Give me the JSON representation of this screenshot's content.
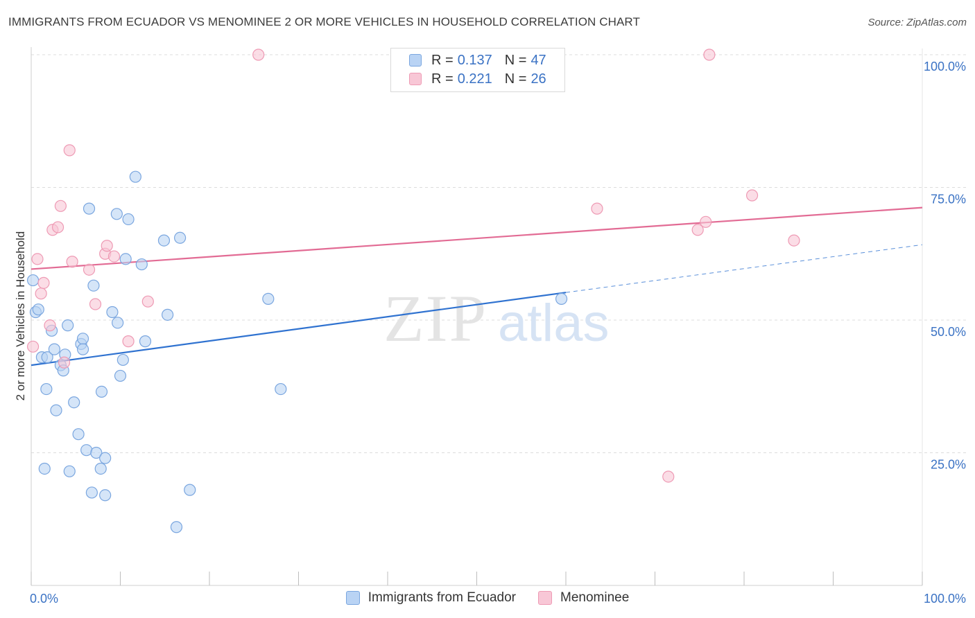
{
  "header": {
    "title": "IMMIGRANTS FROM ECUADOR VS MENOMINEE 2 OR MORE VEHICLES IN HOUSEHOLD CORRELATION CHART",
    "source": "Source: ZipAtlas.com"
  },
  "legend": {
    "rows": [
      {
        "r_label": "R =",
        "r_value": "0.137",
        "n_label": "N =",
        "n_value": "47"
      },
      {
        "r_label": "R =",
        "r_value": "0.221",
        "n_label": "N =",
        "n_value": "26"
      }
    ]
  },
  "watermark": {
    "zip": "ZIP",
    "atlas": "atlas"
  },
  "colors": {
    "blue_fill": "#b9d3f4",
    "blue_stroke": "#7aa6df",
    "blue_line": "#2f72d0",
    "pink_fill": "#f8c7d6",
    "pink_stroke": "#ee9ab4",
    "pink_line": "#e26b94",
    "axis_text": "#3a72c4",
    "grid": "#dcdcdc"
  },
  "chart_data": {
    "type": "scatter",
    "title": "IMMIGRANTS FROM ECUADOR VS MENOMINEE 2 OR MORE VEHICLES IN HOUSEHOLD CORRELATION CHART",
    "xlabel": "",
    "ylabel": "2 or more Vehicles in Household",
    "xlim": [
      0,
      100
    ],
    "ylim": [
      0,
      100
    ],
    "x_tick_labels": [
      "0.0%",
      "100.0%"
    ],
    "y_ticks": [
      25,
      50,
      75,
      100
    ],
    "y_tick_labels": [
      "25.0%",
      "50.0%",
      "75.0%",
      "100.0%"
    ],
    "series": [
      {
        "name": "Immigrants from Ecuador",
        "color": "blue",
        "points": [
          [
            0.2,
            57.5
          ],
          [
            0.5,
            51.5
          ],
          [
            0.8,
            52
          ],
          [
            1.2,
            43
          ],
          [
            1.7,
            37
          ],
          [
            1.8,
            43
          ],
          [
            2.3,
            48
          ],
          [
            2.6,
            44.5
          ],
          [
            2.8,
            33
          ],
          [
            3.3,
            41.5
          ],
          [
            3.6,
            40.5
          ],
          [
            3.8,
            43.5
          ],
          [
            4.1,
            49
          ],
          [
            4.3,
            21.5
          ],
          [
            4.8,
            34.5
          ],
          [
            5.3,
            28.5
          ],
          [
            5.6,
            45.5
          ],
          [
            5.8,
            46.5
          ],
          [
            5.8,
            44.5
          ],
          [
            6.2,
            25.5
          ],
          [
            6.5,
            71
          ],
          [
            6.8,
            17.5
          ],
          [
            7.0,
            56.5
          ],
          [
            7.3,
            25
          ],
          [
            7.8,
            22
          ],
          [
            7.9,
            36.5
          ],
          [
            8.3,
            24
          ],
          [
            8.3,
            17
          ],
          [
            9.1,
            51.5
          ],
          [
            9.6,
            70
          ],
          [
            9.7,
            49.5
          ],
          [
            10.0,
            39.5
          ],
          [
            10.3,
            42.5
          ],
          [
            10.6,
            61.5
          ],
          [
            10.9,
            69
          ],
          [
            11.7,
            77
          ],
          [
            12.4,
            60.5
          ],
          [
            12.8,
            46
          ],
          [
            14.9,
            65
          ],
          [
            15.3,
            51
          ],
          [
            16.3,
            11
          ],
          [
            16.7,
            65.5
          ],
          [
            17.8,
            18
          ],
          [
            26.6,
            54
          ],
          [
            28.0,
            37
          ],
          [
            59.5,
            54
          ],
          [
            1.5,
            22
          ]
        ]
      },
      {
        "name": "Menominee",
        "color": "pink",
        "points": [
          [
            0.2,
            45
          ],
          [
            0.7,
            61.5
          ],
          [
            1.1,
            55
          ],
          [
            1.4,
            57
          ],
          [
            2.1,
            49
          ],
          [
            2.4,
            67
          ],
          [
            3.0,
            67.5
          ],
          [
            3.3,
            71.5
          ],
          [
            3.7,
            42
          ],
          [
            4.3,
            82
          ],
          [
            4.6,
            61
          ],
          [
            6.5,
            59.5
          ],
          [
            7.2,
            53
          ],
          [
            8.3,
            62.5
          ],
          [
            8.5,
            64
          ],
          [
            9.3,
            62
          ],
          [
            10.9,
            46
          ],
          [
            13.1,
            53.5
          ],
          [
            25.5,
            100
          ],
          [
            63.5,
            71
          ],
          [
            71.5,
            20.5
          ],
          [
            74.8,
            67
          ],
          [
            75.7,
            68.5
          ],
          [
            76.1,
            100
          ],
          [
            80.9,
            73.5
          ],
          [
            85.6,
            65
          ]
        ]
      }
    ],
    "trendlines": [
      {
        "series": "Immigrants from Ecuador",
        "x": [
          0,
          60
        ],
        "y": [
          41.5,
          55.2
        ],
        "dashed_to": [
          100,
          64.2
        ]
      },
      {
        "series": "Menominee",
        "x": [
          0,
          100
        ],
        "y": [
          59.6,
          71.2
        ]
      }
    ]
  },
  "bottom_legend": {
    "items": [
      {
        "label": "Immigrants from Ecuador"
      },
      {
        "label": "Menominee"
      }
    ]
  }
}
